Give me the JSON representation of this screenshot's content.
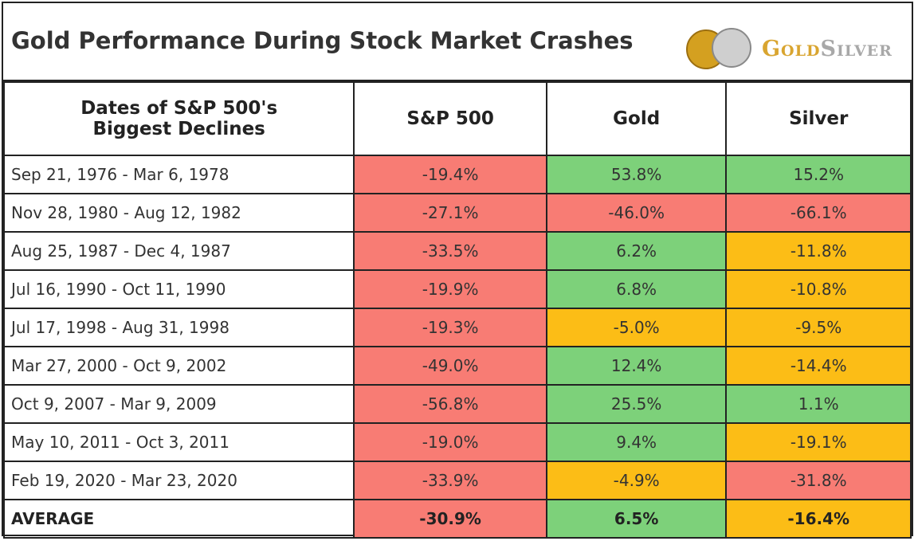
{
  "title": "Gold Performance During Stock Market Crashes",
  "logo": {
    "gold": "Gold",
    "silver": "Silver"
  },
  "table": {
    "header": [
      "Dates of S&P 500's Biggest Declines",
      "S&P 500",
      "Gold",
      "Silver"
    ],
    "rows": [
      [
        "Sep 21, 1976 - Mar 6, 1978",
        "-19.4%",
        "53.8%",
        "15.2%"
      ],
      [
        "Nov 28, 1980 - Aug 12, 1982",
        "-27.1%",
        "-46.0%",
        "-66.1%"
      ],
      [
        "Aug 25, 1987 - Dec 4, 1987",
        "-33.5%",
        "6.2%",
        "-11.8%"
      ],
      [
        "Jul 16, 1990 - Oct 11, 1990",
        "-19.9%",
        "6.8%",
        "-10.8%"
      ],
      [
        "Jul 17, 1998 - Aug 31, 1998",
        "-19.3%",
        "-5.0%",
        "-9.5%"
      ],
      [
        "Mar 27, 2000 - Oct 9, 2002",
        "-49.0%",
        "12.4%",
        "-14.4%"
      ],
      [
        "Oct 9, 2007 - Mar 9, 2009",
        "-56.8%",
        "25.5%",
        "1.1%"
      ],
      [
        "May 10, 2011 - Oct 3, 2011",
        "-19.0%",
        "9.4%",
        "-19.1%"
      ],
      [
        "Feb 19, 2020 - Mar 23, 2020",
        "-33.9%",
        "-4.9%",
        "-31.8%"
      ],
      [
        "AVERAGE",
        "-30.9%",
        "6.5%",
        "-16.4%"
      ]
    ],
    "cell_colors": [
      [
        "red",
        "green",
        "green"
      ],
      [
        "red",
        "red",
        "red"
      ],
      [
        "red",
        "green",
        "orange"
      ],
      [
        "red",
        "green",
        "orange"
      ],
      [
        "red",
        "orange",
        "orange"
      ],
      [
        "red",
        "green",
        "orange"
      ],
      [
        "red",
        "green",
        "green"
      ],
      [
        "red",
        "green",
        "orange"
      ],
      [
        "red",
        "orange",
        "red"
      ],
      [
        "red",
        "green",
        "orange"
      ]
    ]
  }
}
